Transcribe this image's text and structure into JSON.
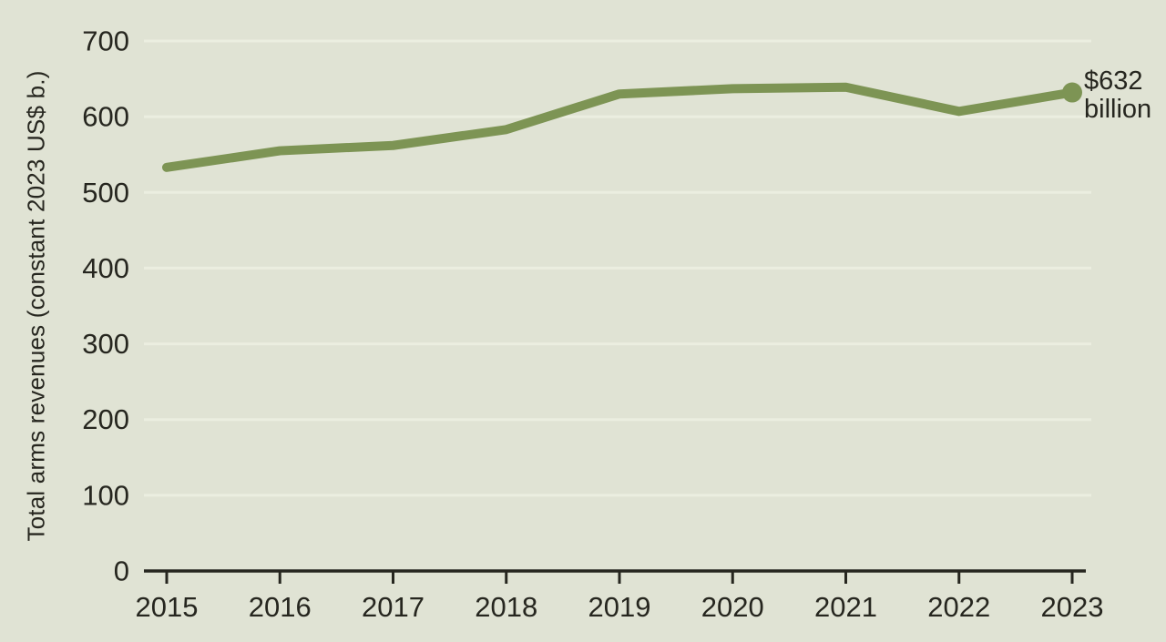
{
  "chart_data": {
    "type": "line",
    "title": "",
    "xlabel": "",
    "ylabel": "Total arms revenues (constant 2023 US$ b.)",
    "categories": [
      "2015",
      "2016",
      "2017",
      "2018",
      "2019",
      "2020",
      "2021",
      "2022",
      "2023"
    ],
    "series": [
      {
        "name": "Total arms revenues",
        "values": [
          533,
          555,
          562,
          583,
          630,
          637,
          639,
          607,
          632
        ]
      }
    ],
    "ylim": [
      0,
      700
    ],
    "yticks": [
      0,
      100,
      200,
      300,
      400,
      500,
      600,
      700
    ],
    "grid": "horizontal-light",
    "legend": "none",
    "end_marker": true,
    "annotation": {
      "lines": [
        "$632",
        "billion"
      ],
      "attached_to": {
        "category": "2023",
        "value": 632
      }
    },
    "colors": {
      "background": "#e0e3d4",
      "line": "#7d9454",
      "grid": "#ebeee0",
      "axis": "#26261f",
      "text": "#26261f"
    }
  }
}
